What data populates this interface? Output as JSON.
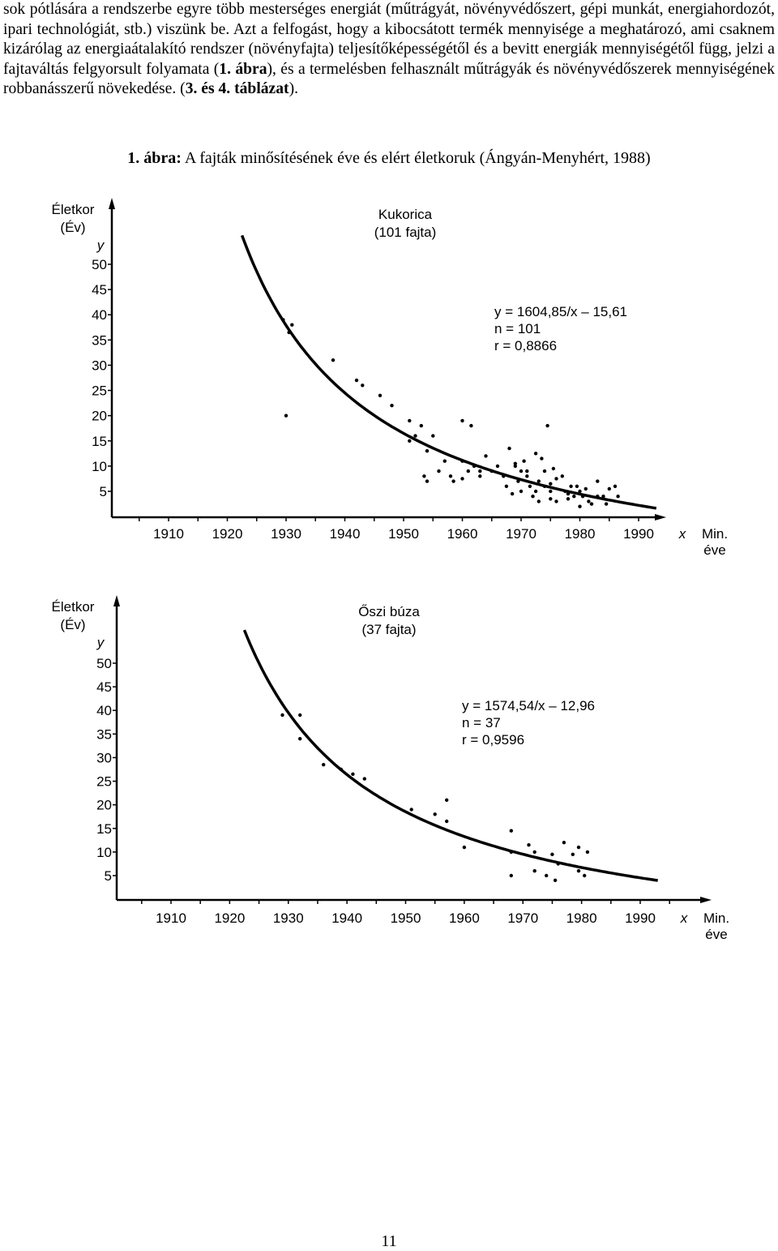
{
  "text": {
    "p1": "sok pótlására a rendszerbe egyre több mesterséges energiát (műtrágyát, növényvédőszert, gépi munkát, energiahordozót, ipari technológiát, stb.) viszünk be. Azt a felfogást, hogy a kibocsátott termék mennyisége a meghatározó, ami csaknem kizárólag az energiaátalakító rendszer (növényfajta) teljesítőképességétől és a bevitt energiák mennyiségétől függ, jelzi a fajtaváltás felgyorsult folyamata (",
    "p1_ref1": "1. ábra",
    "p1_mid": "), és a termelésben felhasznált műtrágyák és növényvédőszerek mennyiségének robbanásszerű növekedése. (",
    "p1_ref2": "3. és 4. táblázat",
    "p1_end": ")."
  },
  "caption": {
    "label": "1. ábra:",
    "text": "A fajták minősítésének éve és elért életkoruk (Ángyán-Menyhért, 1988)"
  },
  "page_number": "11",
  "chart_data": [
    {
      "type": "scatter",
      "title": "Kukorica",
      "subtitle": "(101 fajta)",
      "ylabel": "Életkor",
      "ylabel2": "(Év)",
      "yvar": "y",
      "xvar": "x",
      "xlabel": "Min.",
      "xlabel2": "éve",
      "x_ticks": [
        1910,
        1920,
        1930,
        1940,
        1950,
        1960,
        1970,
        1980,
        1990
      ],
      "y_ticks": [
        5,
        10,
        15,
        20,
        25,
        30,
        35,
        40,
        45,
        50
      ],
      "xlim": [
        1900,
        2000
      ],
      "ylim": [
        0,
        55
      ],
      "equation": "y = 1604,85/x – 15,61",
      "n": "n = 101",
      "r": "r = 0,8866",
      "curve": {
        "a": 1604.85,
        "b": 15.61,
        "x_start": 1922.5,
        "x_end": 1993
      },
      "points": [
        [
          1929.5,
          39
        ],
        [
          1931,
          38
        ],
        [
          1930.5,
          36.5
        ],
        [
          1930,
          20
        ],
        [
          1938,
          31
        ],
        [
          1942,
          27
        ],
        [
          1943,
          26
        ],
        [
          1946,
          24
        ],
        [
          1951,
          19
        ],
        [
          1953,
          18
        ],
        [
          1952,
          16
        ],
        [
          1951,
          15
        ],
        [
          1955,
          16
        ],
        [
          1954,
          13
        ],
        [
          1953.5,
          8
        ],
        [
          1954,
          7
        ],
        [
          1958,
          8
        ],
        [
          1958.5,
          7
        ],
        [
          1960,
          11
        ],
        [
          1961,
          9
        ],
        [
          1962,
          10
        ],
        [
          1963,
          9
        ],
        [
          1960,
          7.5
        ],
        [
          1960,
          19
        ],
        [
          1961.5,
          18
        ],
        [
          1964,
          12
        ],
        [
          1966,
          10
        ],
        [
          1967,
          8
        ],
        [
          1967.5,
          6
        ],
        [
          1969,
          10
        ],
        [
          1970,
          9
        ],
        [
          1969.5,
          7
        ],
        [
          1970.5,
          11
        ],
        [
          1971,
          9
        ],
        [
          1972.5,
          12.5
        ],
        [
          1973.5,
          11.5
        ],
        [
          1971.5,
          6
        ],
        [
          1972.5,
          5
        ],
        [
          1974,
          9
        ],
        [
          1974,
          6
        ],
        [
          1975,
          5
        ],
        [
          1975,
          3.5
        ],
        [
          1976,
          7.5
        ],
        [
          1976,
          3
        ],
        [
          1977,
          8
        ],
        [
          1977.5,
          5
        ],
        [
          1978,
          4.5
        ],
        [
          1978.5,
          6
        ],
        [
          1979,
          4
        ],
        [
          1979.5,
          6
        ],
        [
          1980,
          5
        ],
        [
          1980.5,
          4
        ],
        [
          1981,
          5.5
        ],
        [
          1981.5,
          3
        ],
        [
          1982,
          2.5
        ],
        [
          1983,
          4
        ],
        [
          1983,
          7
        ],
        [
          1984,
          4
        ],
        [
          1984.5,
          2.5
        ],
        [
          1985,
          5.5
        ],
        [
          1986,
          6
        ],
        [
          1986.5,
          4
        ],
        [
          1974.5,
          18
        ],
        [
          1968,
          13.5
        ],
        [
          1969,
          10.5
        ],
        [
          1971,
          8
        ],
        [
          1973,
          7
        ],
        [
          1975,
          6.5
        ],
        [
          1978,
          3.5
        ],
        [
          1980,
          2
        ],
        [
          1965,
          9
        ],
        [
          1963,
          8
        ],
        [
          1956,
          9
        ],
        [
          1957,
          11
        ],
        [
          1948,
          22
        ],
        [
          1975.5,
          9.5
        ],
        [
          1972,
          4
        ],
        [
          1973,
          3
        ],
        [
          1970,
          5
        ],
        [
          1968.5,
          4.5
        ]
      ]
    },
    {
      "type": "scatter",
      "title": "Őszi búza",
      "subtitle": "(37 fajta)",
      "ylabel": "Életkor",
      "ylabel2": "(Év)",
      "yvar": "y",
      "xvar": "x",
      "xlabel": "Min.",
      "xlabel2": "éve",
      "x_ticks": [
        1910,
        1920,
        1930,
        1940,
        1950,
        1960,
        1970,
        1980,
        1990
      ],
      "y_ticks": [
        5,
        10,
        15,
        20,
        25,
        30,
        35,
        40,
        45,
        50
      ],
      "xlim": [
        1900,
        2000
      ],
      "ylim": [
        0,
        55
      ],
      "equation": "y = 1574,54/x – 12,96",
      "n": "n = 37",
      "r": "r = 0,9596",
      "curve": {
        "a": 1574.54,
        "b": 12.96,
        "x_start": 1922.5,
        "x_end": 1993
      },
      "points": [
        [
          1929,
          39
        ],
        [
          1932,
          39
        ],
        [
          1932,
          34
        ],
        [
          1936,
          28.5
        ],
        [
          1939,
          27.5
        ],
        [
          1941,
          26.5
        ],
        [
          1943,
          25.5
        ],
        [
          1951,
          19
        ],
        [
          1955,
          18
        ],
        [
          1957,
          21
        ],
        [
          1957,
          16.5
        ],
        [
          1960,
          11
        ],
        [
          1968,
          14.5
        ],
        [
          1968,
          10
        ],
        [
          1971,
          11.5
        ],
        [
          1972,
          10
        ],
        [
          1975,
          9.5
        ],
        [
          1977,
          12
        ],
        [
          1978.5,
          9.5
        ],
        [
          1979.5,
          11
        ],
        [
          1981,
          10
        ],
        [
          1968,
          5
        ],
        [
          1972,
          6
        ],
        [
          1974,
          5
        ],
        [
          1975.5,
          4
        ],
        [
          1979.5,
          6
        ],
        [
          1980.5,
          5
        ],
        [
          1976,
          7.5
        ]
      ]
    }
  ]
}
